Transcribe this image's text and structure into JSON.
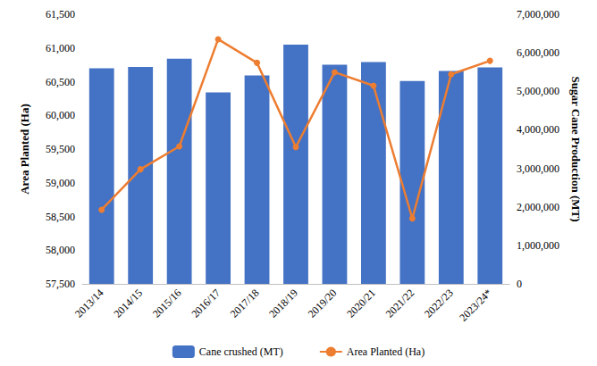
{
  "chart_data": {
    "type": "bar",
    "categories": [
      "2013/14",
      "2014/15",
      "2015/16",
      "2016/17",
      "2017/18",
      "2018/19",
      "2019/20",
      "2020/21",
      "2021/22",
      "2022/23",
      "2023/24*"
    ],
    "y_label": "Area Planted (Ha)",
    "y2_label": "Sugar Cane Production (MT)",
    "ylim": [
      57500,
      61500
    ],
    "yticks": [
      {
        "value": 57500,
        "label": "57,500"
      },
      {
        "value": 58000,
        "label": "58,000"
      },
      {
        "value": 58500,
        "label": "58,500"
      },
      {
        "value": 59000,
        "label": "59,000"
      },
      {
        "value": 59500,
        "label": "59,500"
      },
      {
        "value": 60000,
        "label": "60,000"
      },
      {
        "value": 60500,
        "label": "60,500"
      },
      {
        "value": 61000,
        "label": "61,000"
      },
      {
        "value": 61500,
        "label": "61,500"
      }
    ],
    "y2lim": [
      0,
      7000000
    ],
    "y2ticks": [
      0,
      {
        "value": 1000000,
        "label": "1,000,000"
      },
      {
        "value": 2000000,
        "label": "2,000,000"
      },
      {
        "value": 3000000,
        "label": "3,000,000"
      },
      {
        "value": 4000000,
        "label": "4,000,000"
      },
      {
        "value": 5000000,
        "label": "5,000,000"
      },
      {
        "value": 6000000,
        "label": "6,000,000"
      },
      {
        "value": 7000000,
        "label": "7,000,000"
      }
    ],
    "series": [
      {
        "name": "Cane crushed (MT)",
        "type": "bar",
        "axis": "y2",
        "color": "#4472c4",
        "values": [
          5600000,
          5635000,
          5845000,
          4970000,
          5410000,
          6210000,
          5690000,
          5760000,
          5270000,
          5530000,
          5620000
        ]
      },
      {
        "name": "Area Planted (Ha)",
        "type": "line",
        "axis": "y",
        "color": "#ed7d31",
        "marker": "circle",
        "line_style": "solid",
        "values": [
          58600,
          59200,
          59540,
          61130,
          60780,
          59530,
          60640,
          60440,
          58470,
          60610,
          60810
        ]
      }
    ],
    "legend": "bottom",
    "grid": false
  }
}
